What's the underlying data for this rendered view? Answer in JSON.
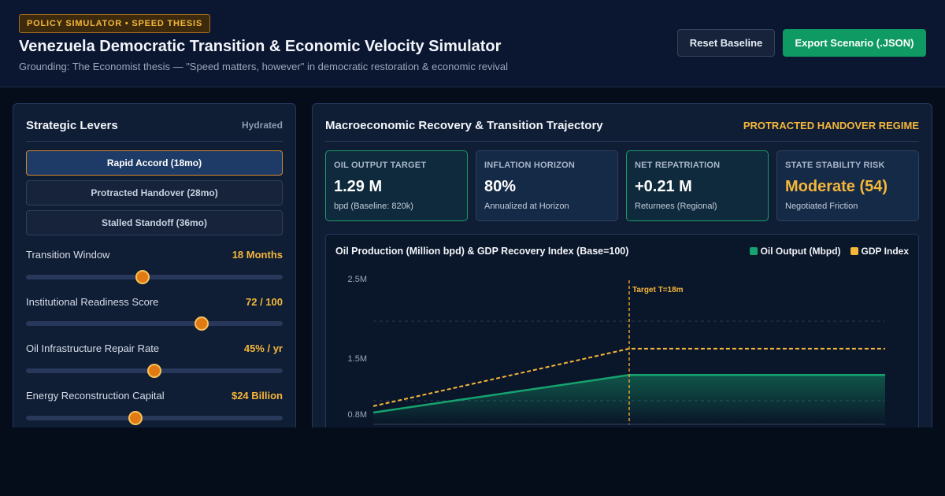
{
  "header": {
    "badge": "POLICY SIMULATOR • SPEED THESIS",
    "title": "Venezuela Democratic Transition & Economic Velocity Simulator",
    "subtitle": "Grounding: The Economist thesis — \"Speed matters, however\" in democratic restoration & economic revival",
    "reset_label": "Reset Baseline",
    "export_label": "Export Scenario (.JSON)"
  },
  "levers": {
    "title": "Strategic Levers",
    "status": "Hydrated",
    "scenarios": [
      {
        "label": "Rapid Accord (18mo)",
        "active": true
      },
      {
        "label": "Protracted Handover (28mo)",
        "active": false
      },
      {
        "label": "Stalled Standoff (36mo)",
        "active": false
      }
    ],
    "sliders": [
      {
        "label": "Transition Window",
        "value": "18 Months",
        "level": 0.455
      },
      {
        "label": "Institutional Readiness Score",
        "value": "72 / 100",
        "level": 0.685
      },
      {
        "label": "Oil Infrastructure Repair Rate",
        "value": "45% / yr",
        "level": 0.5
      },
      {
        "label": "Energy Reconstruction Capital",
        "value": "$24 Billion",
        "level": 0.425
      }
    ]
  },
  "trajectory": {
    "title": "Macroeconomic Recovery & Transition Trajectory",
    "regime": "PROTRACTED HANDOVER REGIME",
    "kpis": [
      {
        "label": "OIL OUTPUT TARGET",
        "value": "1.29 M",
        "sub": "bpd (Baseline: 820k)",
        "tone": "green"
      },
      {
        "label": "INFLATION HORIZON",
        "value": "80%",
        "sub": "Annualized at Horizon",
        "tone": "neutral"
      },
      {
        "label": "NET REPATRIATION",
        "value": "+0.21 M",
        "sub": "Returnees (Regional)",
        "tone": "green"
      },
      {
        "label": "STATE STABILITY RISK",
        "value": "Moderate (54)",
        "sub": "Negotiated Friction",
        "tone": "amber"
      }
    ]
  },
  "colors": {
    "accent": "#f5b73a",
    "oil": "#16a36f",
    "gdp": "#f5b73a",
    "primary_button": "#0f9a63"
  },
  "chart_data": {
    "type": "line",
    "title": "Oil Production (Million bpd) & GDP Recovery Index (Base=100)",
    "series": [
      {
        "name": "Oil Output (Mbpd)",
        "x": [
          0,
          18,
          36
        ],
        "values": [
          0.82,
          1.29,
          1.29
        ],
        "style": "solid-area"
      },
      {
        "name": "GDP Index",
        "x": [
          0,
          18,
          36
        ],
        "values": [
          0.9,
          1.62,
          1.62
        ],
        "style": "dashed"
      }
    ],
    "yticks": [
      "2.5M",
      "1.5M",
      "0.8M"
    ],
    "ylim": [
      0.7,
      2.6
    ],
    "xlim": [
      0,
      36
    ],
    "annotation": {
      "x": 18,
      "label": "Target T=18m"
    },
    "grid": true,
    "legend": "top-right"
  }
}
